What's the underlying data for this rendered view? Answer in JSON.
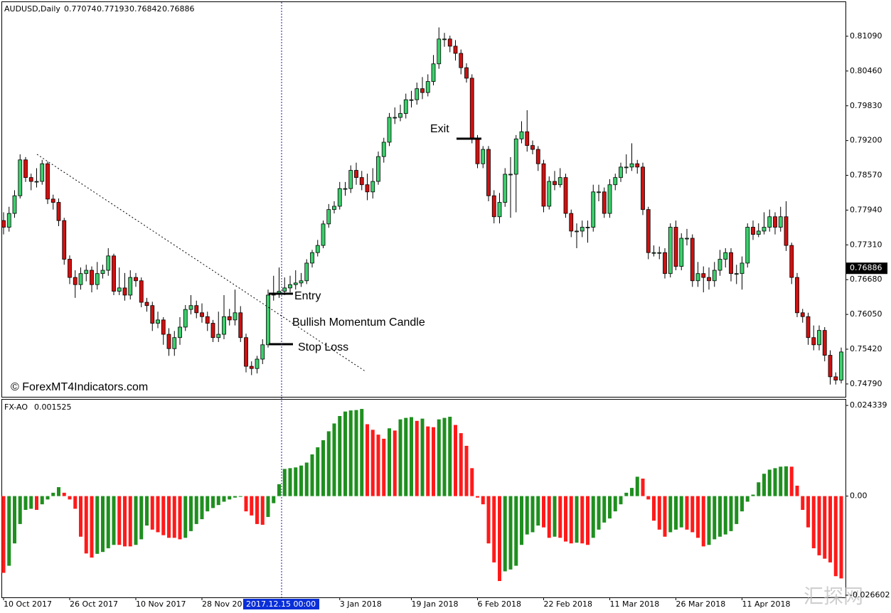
{
  "chart_data": [
    {
      "type": "candlestick",
      "title": "AUDUSD,Daily",
      "quote": [
        0.77074,
        0.77193,
        0.76842,
        0.76886
      ],
      "categories": [
        "10 Oct 2017",
        null,
        null,
        null,
        null,
        null,
        null,
        null,
        null,
        null,
        null,
        null,
        "26 Oct 2017",
        null,
        null,
        null,
        null,
        null,
        null,
        null,
        null,
        null,
        null,
        null,
        "10 Nov 2017",
        null,
        null,
        null,
        null,
        null,
        null,
        null,
        null,
        null,
        null,
        null,
        "28 Nov 2017",
        null,
        null,
        null,
        null,
        null,
        null,
        null,
        null,
        null,
        null,
        null,
        null,
        null,
        null,
        null,
        null,
        null,
        null,
        null,
        null,
        null,
        null,
        null,
        null,
        "3 Jan 2018",
        null,
        null,
        null,
        null,
        null,
        null,
        null,
        null,
        null,
        null,
        null,
        null,
        "19 Jan 2018",
        null,
        null,
        null,
        null,
        null,
        null,
        null,
        null,
        null,
        null,
        null,
        "6 Feb 2018",
        null,
        null,
        null,
        null,
        null,
        null,
        null,
        null,
        null,
        null,
        null,
        "22 Feb 2018",
        null,
        null,
        null,
        null,
        null,
        null,
        null,
        null,
        null,
        null,
        null,
        "11 Mar 2018",
        null,
        null,
        null,
        null,
        null,
        null,
        null,
        null,
        null,
        null,
        null,
        "26 Mar 2018",
        null,
        null,
        null,
        null,
        null,
        null,
        null,
        null,
        null,
        null,
        null,
        "11 Apr 2018",
        null,
        null,
        null,
        null,
        null,
        null,
        null,
        null,
        null,
        null,
        null,
        null,
        null,
        null,
        null,
        null,
        null,
        null
      ],
      "open": [
        0.7775,
        0.7763,
        0.7788,
        0.782,
        0.7885,
        0.7853,
        0.7846,
        0.7846,
        0.7878,
        0.7814,
        0.7808,
        0.7775,
        0.7705,
        0.7672,
        0.7659,
        0.7679,
        0.7685,
        0.7659,
        0.7679,
        0.7685,
        0.7711,
        0.7647,
        0.7653,
        0.764,
        0.7672,
        0.7666,
        0.7627,
        0.7621,
        0.7589,
        0.7595,
        0.7569,
        0.7543,
        0.7563,
        0.7582,
        0.7614,
        0.7621,
        0.7608,
        0.7601,
        0.7589,
        0.7563,
        0.7569,
        0.7601,
        0.7595,
        0.7608,
        0.7563,
        0.7511,
        0.7507,
        0.7524,
        0.755,
        0.764,
        0.7643,
        0.7647,
        0.7653,
        0.7659,
        0.7662,
        0.7666,
        0.7698,
        0.7717,
        0.773,
        0.7769,
        0.7795,
        0.7801,
        0.7833,
        0.7833,
        0.7866,
        0.7853,
        0.784,
        0.7827,
        0.7846,
        0.7891,
        0.7917,
        0.7962,
        0.7962,
        0.7969,
        0.7994,
        0.7994,
        0.8014,
        0.8007,
        0.8027,
        0.8059,
        0.8104,
        0.8104,
        0.8091,
        0.8078,
        0.8052,
        0.8033,
        0.7923,
        0.7878,
        0.7904,
        0.782,
        0.7782,
        0.7808,
        0.7859,
        0.7859,
        0.7923,
        0.7936,
        0.7911,
        0.7904,
        0.7878,
        0.7801,
        0.7846,
        0.784,
        0.7853,
        0.7788,
        0.7756,
        0.7756,
        0.7763,
        0.7763,
        0.7827,
        0.7827,
        0.7788,
        0.784,
        0.7853,
        0.7872,
        0.7872,
        0.7878,
        0.7872,
        0.7795,
        0.7717,
        0.7717,
        0.7717,
        0.7679,
        0.7763,
        0.7692,
        0.7743,
        0.7743,
        0.7666,
        0.7679,
        0.7672,
        0.7666,
        0.7685,
        0.7705,
        0.7717,
        0.7679,
        0.7679,
        0.7698,
        0.7763,
        0.775,
        0.7756,
        0.7763,
        0.7782,
        0.7763,
        0.7782,
        0.773,
        0.7672,
        0.7608,
        0.7601,
        0.7563,
        0.755,
        0.7576,
        0.7531,
        0.7492,
        0.7486
      ],
      "high": [
        0.779,
        0.78,
        0.783,
        0.7895,
        0.789,
        0.786,
        0.787,
        0.7885,
        0.7882,
        0.7822,
        0.7815,
        0.778,
        0.7712,
        0.7685,
        0.769,
        0.7695,
        0.7692,
        0.77,
        0.7695,
        0.7725,
        0.7715,
        0.769,
        0.768,
        0.7685,
        0.768,
        0.7672,
        0.7635,
        0.7628,
        0.761,
        0.76,
        0.758,
        0.7575,
        0.76,
        0.7622,
        0.764,
        0.763,
        0.7625,
        0.761,
        0.7595,
        0.761,
        0.764,
        0.7615,
        0.765,
        0.762,
        0.757,
        0.752,
        0.753,
        0.756,
        0.765,
        0.7675,
        0.769,
        0.7672,
        0.7675,
        0.7685,
        0.768,
        0.7705,
        0.7722,
        0.774,
        0.7775,
        0.7805,
        0.781,
        0.7845,
        0.7845,
        0.7875,
        0.788,
        0.7865,
        0.786,
        0.787,
        0.79,
        0.7925,
        0.797,
        0.798,
        0.7985,
        0.8005,
        0.801,
        0.8025,
        0.8035,
        0.804,
        0.8075,
        0.8125,
        0.8115,
        0.811,
        0.8102,
        0.8085,
        0.806,
        0.804,
        0.793,
        0.791,
        0.791,
        0.783,
        0.7825,
        0.787,
        0.789,
        0.793,
        0.7955,
        0.7975,
        0.792,
        0.791,
        0.7885,
        0.7855,
        0.7865,
        0.787,
        0.786,
        0.7795,
        0.777,
        0.7775,
        0.7775,
        0.784,
        0.784,
        0.7835,
        0.785,
        0.786,
        0.788,
        0.7895,
        0.7915,
        0.7885,
        0.788,
        0.78,
        0.773,
        0.7728,
        0.7725,
        0.777,
        0.7775,
        0.7752,
        0.776,
        0.775,
        0.77,
        0.7692,
        0.769,
        0.77,
        0.7722,
        0.7725,
        0.7725,
        0.7695,
        0.771,
        0.777,
        0.7775,
        0.777,
        0.779,
        0.7795,
        0.779,
        0.78,
        0.781,
        0.7735,
        0.768,
        0.7615,
        0.7608,
        0.7585,
        0.7585,
        0.7582,
        0.754,
        0.75,
        0.7545
      ],
      "low": [
        0.775,
        0.7755,
        0.778,
        0.7815,
        0.7845,
        0.783,
        0.7835,
        0.784,
        0.7805,
        0.7795,
        0.7765,
        0.7695,
        0.766,
        0.7635,
        0.765,
        0.7665,
        0.7645,
        0.765,
        0.767,
        0.7675,
        0.764,
        0.764,
        0.763,
        0.7632,
        0.7655,
        0.7618,
        0.761,
        0.7575,
        0.758,
        0.755,
        0.753,
        0.753,
        0.755,
        0.7575,
        0.7605,
        0.7598,
        0.759,
        0.7575,
        0.7555,
        0.7555,
        0.756,
        0.7585,
        0.7585,
        0.7555,
        0.75,
        0.7495,
        0.7498,
        0.7515,
        0.7545,
        0.763,
        0.7635,
        0.764,
        0.7645,
        0.765,
        0.7655,
        0.766,
        0.769,
        0.771,
        0.7725,
        0.7762,
        0.7788,
        0.7795,
        0.782,
        0.7825,
        0.784,
        0.783,
        0.7812,
        0.7815,
        0.784,
        0.788,
        0.791,
        0.795,
        0.7955,
        0.796,
        0.798,
        0.7985,
        0.7995,
        0.8,
        0.802,
        0.805,
        0.809,
        0.808,
        0.8065,
        0.804,
        0.8025,
        0.7915,
        0.787,
        0.787,
        0.781,
        0.777,
        0.777,
        0.78,
        0.778,
        0.779,
        0.7915,
        0.79,
        0.7895,
        0.7865,
        0.779,
        0.7795,
        0.783,
        0.7835,
        0.778,
        0.7745,
        0.7725,
        0.7745,
        0.7735,
        0.7755,
        0.781,
        0.778,
        0.778,
        0.783,
        0.7845,
        0.786,
        0.7865,
        0.786,
        0.7785,
        0.7705,
        0.771,
        0.7705,
        0.767,
        0.7672,
        0.7685,
        0.7685,
        0.773,
        0.7655,
        0.7655,
        0.7645,
        0.765,
        0.7655,
        0.7675,
        0.769,
        0.7665,
        0.766,
        0.765,
        0.769,
        0.774,
        0.7745,
        0.775,
        0.7755,
        0.775,
        0.7755,
        0.772,
        0.766,
        0.76,
        0.759,
        0.755,
        0.754,
        0.754,
        0.752,
        0.7478,
        0.7478,
        0.748
      ],
      "close": [
        0.7763,
        0.7788,
        0.782,
        0.7885,
        0.7853,
        0.7846,
        0.7846,
        0.7878,
        0.7814,
        0.7808,
        0.7775,
        0.7705,
        0.7672,
        0.7659,
        0.7679,
        0.7685,
        0.7659,
        0.7679,
        0.7685,
        0.7711,
        0.7647,
        0.7653,
        0.764,
        0.7672,
        0.7666,
        0.7627,
        0.7621,
        0.7589,
        0.7595,
        0.7569,
        0.7543,
        0.7563,
        0.7582,
        0.7614,
        0.7621,
        0.7608,
        0.7601,
        0.7589,
        0.7563,
        0.7569,
        0.7601,
        0.7595,
        0.7608,
        0.7563,
        0.7511,
        0.7507,
        0.7524,
        0.755,
        0.764,
        0.7643,
        0.7647,
        0.7653,
        0.7659,
        0.7662,
        0.7666,
        0.7698,
        0.7717,
        0.773,
        0.7769,
        0.7795,
        0.7801,
        0.7833,
        0.7833,
        0.7866,
        0.7853,
        0.784,
        0.7827,
        0.7846,
        0.7891,
        0.7917,
        0.7962,
        0.7962,
        0.7969,
        0.7994,
        0.7994,
        0.8014,
        0.8007,
        0.8027,
        0.8059,
        0.8104,
        0.8104,
        0.8091,
        0.8078,
        0.8052,
        0.8033,
        0.7923,
        0.7878,
        0.7904,
        0.782,
        0.7782,
        0.7808,
        0.7859,
        0.7859,
        0.7923,
        0.7936,
        0.7911,
        0.7904,
        0.7878,
        0.7801,
        0.7846,
        0.784,
        0.7853,
        0.7788,
        0.7756,
        0.7756,
        0.7763,
        0.7763,
        0.7827,
        0.7827,
        0.7788,
        0.784,
        0.7853,
        0.7872,
        0.7872,
        0.7878,
        0.7872,
        0.7795,
        0.7717,
        0.7717,
        0.7717,
        0.7679,
        0.7763,
        0.7692,
        0.7743,
        0.7743,
        0.7666,
        0.7679,
        0.7672,
        0.7666,
        0.7685,
        0.7705,
        0.7717,
        0.7679,
        0.7679,
        0.7698,
        0.7763,
        0.775,
        0.7756,
        0.7763,
        0.7782,
        0.7763,
        0.7782,
        0.773,
        0.7672,
        0.7608,
        0.7601,
        0.7563,
        0.755,
        0.7576,
        0.7531,
        0.7492,
        0.7486,
        0.7537
      ],
      "up_color": "#3ccf6c",
      "down_color": "#d01010",
      "ylim": [
        0.7457,
        0.81695
      ],
      "yticks": [
        {
          "value": 0.8109,
          "label": "0.81090"
        },
        {
          "value": 0.8046,
          "label": "0.80460"
        },
        {
          "value": 0.7983,
          "label": "0.79830"
        },
        {
          "value": 0.792,
          "label": "0.79200"
        },
        {
          "value": 0.7857,
          "label": "0.78570"
        },
        {
          "value": 0.7794,
          "label": "0.77940"
        },
        {
          "value": 0.7731,
          "label": "0.77310"
        },
        {
          "value": 0.7668,
          "label": "0.76680"
        },
        {
          "value": 0.7605,
          "label": "0.76050"
        },
        {
          "value": 0.7542,
          "label": "0.75420"
        },
        {
          "value": 0.7479,
          "label": "0.74790"
        }
      ],
      "last_price": 0.76886,
      "crosshair_label": "2017.12.15 00:00",
      "annotations": [
        "Entry",
        "Bullish Momentum Candle",
        "Stop Loss",
        "Exit"
      ],
      "copyright": "© ForexMT4Indicators.com"
    },
    {
      "type": "bar",
      "title": "FX-AO",
      "title_value": 0.001525,
      "values": [
        -0.0206,
        -0.0187,
        -0.0127,
        -0.0075,
        -0.0037,
        -0.0034,
        -0.0037,
        -0.0022,
        -0.0009,
        0.0009,
        0.0024,
        0.0009,
        -0.0009,
        -0.0034,
        -0.0109,
        -0.0154,
        -0.0165,
        -0.0155,
        -0.015,
        -0.014,
        -0.0131,
        -0.0131,
        -0.0135,
        -0.0135,
        -0.0131,
        -0.0116,
        -0.0079,
        -0.009,
        -0.0097,
        -0.0105,
        -0.0112,
        -0.0112,
        -0.0116,
        -0.0112,
        -0.0094,
        -0.0075,
        -0.0062,
        -0.0041,
        -0.0032,
        -0.0024,
        -0.0015,
        -0.0009,
        -0.0004,
        -0.0002,
        -0.0041,
        -0.0052,
        -0.0075,
        -0.0077,
        -0.0056,
        -0.0019,
        0.0032,
        0.0073,
        0.0075,
        0.0077,
        0.0082,
        0.009,
        0.0112,
        0.0131,
        0.015,
        0.0174,
        0.0195,
        0.0215,
        0.0227,
        0.023,
        0.0231,
        0.0234,
        0.0193,
        0.0178,
        0.0165,
        0.0154,
        0.0182,
        0.0176,
        0.0206,
        0.021,
        0.0212,
        0.0202,
        0.0208,
        0.0187,
        0.0185,
        0.0206,
        0.021,
        0.0213,
        0.0191,
        0.0169,
        0.0135,
        0.0075,
        -0.0004,
        -0.0022,
        -0.0127,
        -0.0178,
        -0.0228,
        -0.0202,
        -0.0197,
        -0.0187,
        -0.0131,
        -0.0103,
        -0.0097,
        -0.0079,
        -0.0084,
        -0.0112,
        -0.0109,
        -0.0112,
        -0.0122,
        -0.0127,
        -0.0125,
        -0.0127,
        -0.0131,
        -0.0112,
        -0.009,
        -0.0071,
        -0.006,
        -0.0041,
        -0.0022,
        0.0009,
        0.0022,
        0.0052,
        0.0047,
        -0.0009,
        -0.0066,
        -0.009,
        -0.0109,
        -0.0097,
        -0.009,
        -0.0084,
        -0.009,
        -0.0097,
        -0.0112,
        -0.0135,
        -0.0131,
        -0.0116,
        -0.0109,
        -0.0103,
        -0.0094,
        -0.0075,
        -0.0041,
        -0.0015,
        0.0004,
        0.0037,
        0.006,
        0.0071,
        0.0075,
        0.0079,
        0.008,
        0.0079,
        0.0028,
        -0.0037,
        -0.0084,
        -0.014,
        -0.0159,
        -0.0168,
        -0.0178,
        -0.0215,
        -0.0221
      ],
      "up_color": "#1f8f1f",
      "down_color": "#ff1a1a",
      "ylim": [
        -0.0268,
        0.0257
      ],
      "yticks": [
        0.024339,
        {
          "value": 0,
          "label": "0.00"
        },
        -0.026602
      ]
    }
  ],
  "watermark": "汇探网"
}
